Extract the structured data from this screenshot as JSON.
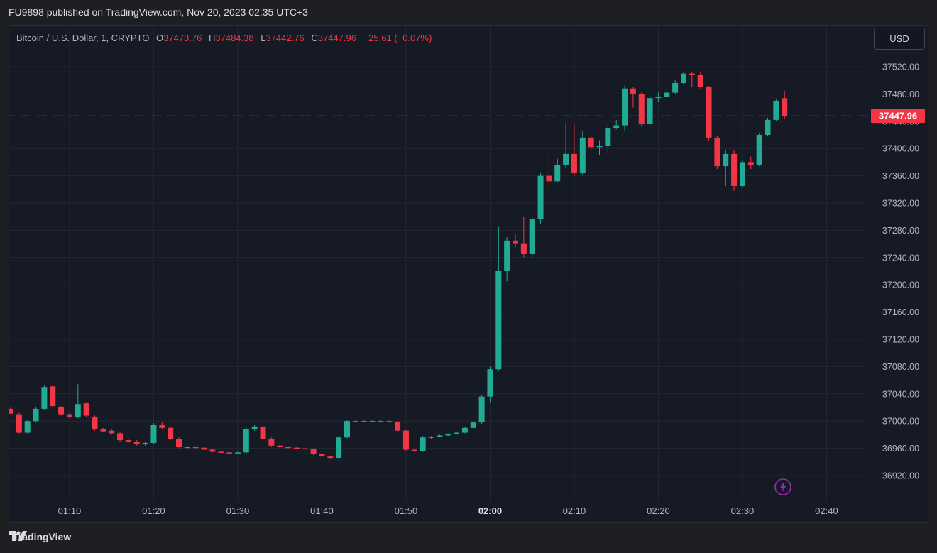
{
  "header": {
    "published_text": "FU9898 published on TradingView.com, Nov 20, 2023 02:35 UTC+3"
  },
  "legend": {
    "symbol": "Bitcoin / U.S. Dollar, 1, CRYPTO",
    "o_label": "O",
    "o_value": "37473.76",
    "h_label": "H",
    "h_value": "37484.38",
    "l_label": "L",
    "l_value": "37442.76",
    "c_label": "C",
    "c_value": "37447.96",
    "change": "−25.61 (−0.07%)"
  },
  "currency_button": {
    "label": "USD"
  },
  "last_price_label": "37447.96",
  "footer": {
    "brand": "TradingView"
  },
  "colors": {
    "up": "#22ab94",
    "down": "#f23645",
    "background": "#161a25",
    "grid": "#232734",
    "axis_text": "#b2b5be"
  },
  "icons": {
    "lightning": "lightning-icon",
    "logo": "tradingview-logo-icon"
  },
  "chart_data": {
    "type": "candlestick",
    "title": "",
    "xlabel": "",
    "ylabel": "",
    "ylim": [
      36895,
      37545
    ],
    "y_ticks": [
      "36920.00",
      "36960.00",
      "37000.00",
      "37040.00",
      "37080.00",
      "37120.00",
      "37160.00",
      "37200.00",
      "37240.00",
      "37280.00",
      "37320.00",
      "37360.00",
      "37400.00",
      "37440.00",
      "37480.00",
      "37520.00"
    ],
    "x_ticks": [
      {
        "label": "01:10",
        "minute": 10,
        "bold": false
      },
      {
        "label": "01:20",
        "minute": 20,
        "bold": false
      },
      {
        "label": "01:30",
        "minute": 30,
        "bold": false
      },
      {
        "label": "01:40",
        "minute": 40,
        "bold": false
      },
      {
        "label": "01:50",
        "minute": 50,
        "bold": false
      },
      {
        "label": "02:00",
        "minute": 60,
        "bold": true
      },
      {
        "label": "02:10",
        "minute": 70,
        "bold": false
      },
      {
        "label": "02:20",
        "minute": 80,
        "bold": false
      },
      {
        "label": "02:30",
        "minute": 90,
        "bold": false
      },
      {
        "label": "02:40",
        "minute": 100,
        "bold": false
      }
    ],
    "last_price": 37447.96,
    "candles": [
      {
        "t": "01:03",
        "o": 37018,
        "h": 37020,
        "l": 37010,
        "c": 37011
      },
      {
        "t": "01:04",
        "o": 37010,
        "h": 37012,
        "l": 36982,
        "c": 36983
      },
      {
        "t": "01:05",
        "o": 36983,
        "h": 37002,
        "l": 36982,
        "c": 37000
      },
      {
        "t": "01:06",
        "o": 37000,
        "h": 37020,
        "l": 36998,
        "c": 37018
      },
      {
        "t": "01:07",
        "o": 37018,
        "h": 37052,
        "l": 37016,
        "c": 37050
      },
      {
        "t": "01:08",
        "o": 37051,
        "h": 37053,
        "l": 37020,
        "c": 37022
      },
      {
        "t": "01:09",
        "o": 37020,
        "h": 37022,
        "l": 37008,
        "c": 37010
      },
      {
        "t": "01:10",
        "o": 37010,
        "h": 37012,
        "l": 37004,
        "c": 37006
      },
      {
        "t": "01:11",
        "o": 37006,
        "h": 37054,
        "l": 37004,
        "c": 37025
      },
      {
        "t": "01:12",
        "o": 37026,
        "h": 37028,
        "l": 37006,
        "c": 37008
      },
      {
        "t": "01:13",
        "o": 37006,
        "h": 37008,
        "l": 36986,
        "c": 36988
      },
      {
        "t": "01:14",
        "o": 36988,
        "h": 36990,
        "l": 36984,
        "c": 36985
      },
      {
        "t": "01:15",
        "o": 36986,
        "h": 36988,
        "l": 36980,
        "c": 36982
      },
      {
        "t": "01:16",
        "o": 36982,
        "h": 36984,
        "l": 36970,
        "c": 36972
      },
      {
        "t": "01:17",
        "o": 36972,
        "h": 36974,
        "l": 36968,
        "c": 36970
      },
      {
        "t": "01:18",
        "o": 36970,
        "h": 36972,
        "l": 36964,
        "c": 36966
      },
      {
        "t": "01:19",
        "o": 36966,
        "h": 36970,
        "l": 36964,
        "c": 36968
      },
      {
        "t": "01:20",
        "o": 36968,
        "h": 36997,
        "l": 36966,
        "c": 36994
      },
      {
        "t": "01:21",
        "o": 36994,
        "h": 36998,
        "l": 36988,
        "c": 36990
      },
      {
        "t": "01:22",
        "o": 36990,
        "h": 36992,
        "l": 36972,
        "c": 36974
      },
      {
        "t": "01:23",
        "o": 36974,
        "h": 36976,
        "l": 36960,
        "c": 36962
      },
      {
        "t": "01:24",
        "o": 36962,
        "h": 36963,
        "l": 36961,
        "c": 36962
      },
      {
        "t": "01:25",
        "o": 36962,
        "h": 36963,
        "l": 36960,
        "c": 36961
      },
      {
        "t": "01:26",
        "o": 36961,
        "h": 36962,
        "l": 36956,
        "c": 36958
      },
      {
        "t": "01:27",
        "o": 36958,
        "h": 36959,
        "l": 36954,
        "c": 36955
      },
      {
        "t": "01:28",
        "o": 36955,
        "h": 36956,
        "l": 36953,
        "c": 36954
      },
      {
        "t": "01:29",
        "o": 36954,
        "h": 36955,
        "l": 36952,
        "c": 36953
      },
      {
        "t": "01:30",
        "o": 36953,
        "h": 36955,
        "l": 36952,
        "c": 36954
      },
      {
        "t": "01:31",
        "o": 36954,
        "h": 36990,
        "l": 36952,
        "c": 36988
      },
      {
        "t": "01:32",
        "o": 36988,
        "h": 36994,
        "l": 36986,
        "c": 36992
      },
      {
        "t": "01:33",
        "o": 36992,
        "h": 36994,
        "l": 36972,
        "c": 36974
      },
      {
        "t": "01:34",
        "o": 36974,
        "h": 36976,
        "l": 36962,
        "c": 36964
      },
      {
        "t": "01:35",
        "o": 36964,
        "h": 36965,
        "l": 36960,
        "c": 36962
      },
      {
        "t": "01:36",
        "o": 36962,
        "h": 36963,
        "l": 36960,
        "c": 36961
      },
      {
        "t": "01:37",
        "o": 36961,
        "h": 36962,
        "l": 36959,
        "c": 36960
      },
      {
        "t": "01:38",
        "o": 36960,
        "h": 36961,
        "l": 36958,
        "c": 36959
      },
      {
        "t": "01:39",
        "o": 36959,
        "h": 36960,
        "l": 36950,
        "c": 36952
      },
      {
        "t": "01:40",
        "o": 36952,
        "h": 36953,
        "l": 36946,
        "c": 36948
      },
      {
        "t": "01:41",
        "o": 36948,
        "h": 36949,
        "l": 36945,
        "c": 36946
      },
      {
        "t": "01:42",
        "o": 36946,
        "h": 36978,
        "l": 36945,
        "c": 36976
      },
      {
        "t": "01:43",
        "o": 36976,
        "h": 37002,
        "l": 36975,
        "c": 37000
      },
      {
        "t": "01:44",
        "o": 37000,
        "h": 37001,
        "l": 36999,
        "c": 37000
      },
      {
        "t": "01:45",
        "o": 37000,
        "h": 37001,
        "l": 36999,
        "c": 37000
      },
      {
        "t": "01:46",
        "o": 37000,
        "h": 37001,
        "l": 36999,
        "c": 37000
      },
      {
        "t": "01:47",
        "o": 37000,
        "h": 37001,
        "l": 36999,
        "c": 37000
      },
      {
        "t": "01:48",
        "o": 37000,
        "h": 37001,
        "l": 36998,
        "c": 36999
      },
      {
        "t": "01:49",
        "o": 36999,
        "h": 37000,
        "l": 36984,
        "c": 36986
      },
      {
        "t": "01:50",
        "o": 36986,
        "h": 36987,
        "l": 36956,
        "c": 36958
      },
      {
        "t": "01:51",
        "o": 36958,
        "h": 36959,
        "l": 36955,
        "c": 36956
      },
      {
        "t": "01:52",
        "o": 36956,
        "h": 36978,
        "l": 36955,
        "c": 36976
      },
      {
        "t": "01:53",
        "o": 36976,
        "h": 36978,
        "l": 36974,
        "c": 36977
      },
      {
        "t": "01:54",
        "o": 36977,
        "h": 36980,
        "l": 36976,
        "c": 36979
      },
      {
        "t": "01:55",
        "o": 36979,
        "h": 36982,
        "l": 36978,
        "c": 36981
      },
      {
        "t": "01:56",
        "o": 36981,
        "h": 36984,
        "l": 36980,
        "c": 36983
      },
      {
        "t": "01:57",
        "o": 36983,
        "h": 36992,
        "l": 36982,
        "c": 36990
      },
      {
        "t": "01:58",
        "o": 36990,
        "h": 37000,
        "l": 36988,
        "c": 36998
      },
      {
        "t": "01:59",
        "o": 36998,
        "h": 37038,
        "l": 36996,
        "c": 37036
      },
      {
        "t": "02:00",
        "o": 37036,
        "h": 37080,
        "l": 37028,
        "c": 37076
      },
      {
        "t": "02:01",
        "o": 37076,
        "h": 37285,
        "l": 37074,
        "c": 37220
      },
      {
        "t": "02:02",
        "o": 37220,
        "h": 37270,
        "l": 37205,
        "c": 37265
      },
      {
        "t": "02:03",
        "o": 37265,
        "h": 37275,
        "l": 37255,
        "c": 37260
      },
      {
        "t": "02:04",
        "o": 37260,
        "h": 37300,
        "l": 37240,
        "c": 37245
      },
      {
        "t": "02:05",
        "o": 37245,
        "h": 37300,
        "l": 37240,
        "c": 37296
      },
      {
        "t": "02:06",
        "o": 37296,
        "h": 37365,
        "l": 37290,
        "c": 37360
      },
      {
        "t": "02:07",
        "o": 37360,
        "h": 37395,
        "l": 37342,
        "c": 37352
      },
      {
        "t": "02:08",
        "o": 37352,
        "h": 37385,
        "l": 37350,
        "c": 37376
      },
      {
        "t": "02:09",
        "o": 37376,
        "h": 37438,
        "l": 37372,
        "c": 37392
      },
      {
        "t": "02:10",
        "o": 37392,
        "h": 37435,
        "l": 37360,
        "c": 37364
      },
      {
        "t": "02:11",
        "o": 37364,
        "h": 37425,
        "l": 37362,
        "c": 37416
      },
      {
        "t": "02:12",
        "o": 37416,
        "h": 37418,
        "l": 37398,
        "c": 37402
      },
      {
        "t": "02:13",
        "o": 37402,
        "h": 37412,
        "l": 37390,
        "c": 37404
      },
      {
        "t": "02:14",
        "o": 37404,
        "h": 37435,
        "l": 37392,
        "c": 37430
      },
      {
        "t": "02:15",
        "o": 37430,
        "h": 37442,
        "l": 37428,
        "c": 37434
      },
      {
        "t": "02:16",
        "o": 37434,
        "h": 37492,
        "l": 37425,
        "c": 37488
      },
      {
        "t": "02:17",
        "o": 37488,
        "h": 37490,
        "l": 37460,
        "c": 37480
      },
      {
        "t": "02:18",
        "o": 37480,
        "h": 37482,
        "l": 37432,
        "c": 37436
      },
      {
        "t": "02:19",
        "o": 37436,
        "h": 37480,
        "l": 37425,
        "c": 37474
      },
      {
        "t": "02:20",
        "o": 37474,
        "h": 37482,
        "l": 37468,
        "c": 37476
      },
      {
        "t": "02:21",
        "o": 37476,
        "h": 37485,
        "l": 37474,
        "c": 37482
      },
      {
        "t": "02:22",
        "o": 37482,
        "h": 37500,
        "l": 37480,
        "c": 37496
      },
      {
        "t": "02:23",
        "o": 37496,
        "h": 37512,
        "l": 37494,
        "c": 37510
      },
      {
        "t": "02:24",
        "o": 37510,
        "h": 37512,
        "l": 37490,
        "c": 37508
      },
      {
        "t": "02:25",
        "o": 37508,
        "h": 37512,
        "l": 37488,
        "c": 37490
      },
      {
        "t": "02:26",
        "o": 37490,
        "h": 37492,
        "l": 37412,
        "c": 37416
      },
      {
        "t": "02:27",
        "o": 37416,
        "h": 37418,
        "l": 37370,
        "c": 37374
      },
      {
        "t": "02:28",
        "o": 37374,
        "h": 37398,
        "l": 37345,
        "c": 37392
      },
      {
        "t": "02:29",
        "o": 37392,
        "h": 37398,
        "l": 37338,
        "c": 37345
      },
      {
        "t": "02:30",
        "o": 37345,
        "h": 37382,
        "l": 37343,
        "c": 37380
      },
      {
        "t": "02:31",
        "o": 37380,
        "h": 37388,
        "l": 37370,
        "c": 37376
      },
      {
        "t": "02:32",
        "o": 37376,
        "h": 37422,
        "l": 37374,
        "c": 37420
      },
      {
        "t": "02:33",
        "o": 37420,
        "h": 37445,
        "l": 37418,
        "c": 37442
      },
      {
        "t": "02:34",
        "o": 37442,
        "h": 37472,
        "l": 37440,
        "c": 37470
      },
      {
        "t": "02:35",
        "o": 37473.76,
        "h": 37484.38,
        "l": 37442.76,
        "c": 37447.96
      }
    ]
  }
}
